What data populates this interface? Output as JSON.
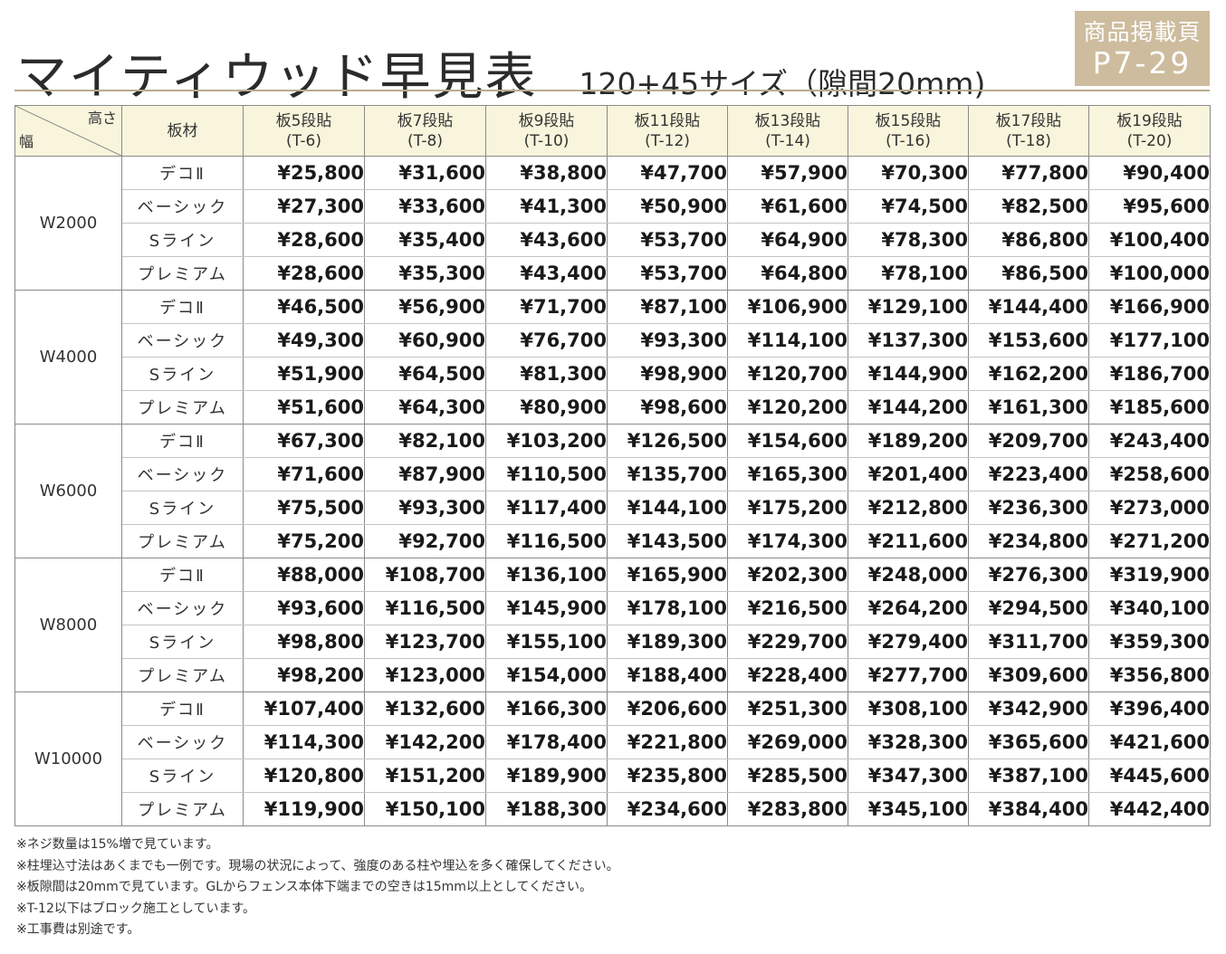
{
  "header": {
    "title": "マイティウッド早見表",
    "subtitle": "120+45サイズ（隙間20mm)",
    "badge_label": "商品掲載頁",
    "badge_page": "P7-29"
  },
  "table": {
    "corner_height_label": "高さ",
    "corner_width_label": "幅",
    "material_header": "板材",
    "columns": [
      {
        "name": "板5段貼",
        "code": "(T-6)"
      },
      {
        "name": "板7段貼",
        "code": "(T-8)"
      },
      {
        "name": "板9段貼",
        "code": "(T-10)"
      },
      {
        "name": "板11段貼",
        "code": "(T-12)"
      },
      {
        "name": "板13段貼",
        "code": "(T-14)"
      },
      {
        "name": "板15段貼",
        "code": "(T-16)"
      },
      {
        "name": "板17段貼",
        "code": "(T-18)"
      },
      {
        "name": "板19段貼",
        "code": "(T-20)"
      }
    ],
    "groups": [
      {
        "width": "W2000",
        "rows": [
          {
            "material": "デコⅡ",
            "prices": [
              "¥25,800",
              "¥31,600",
              "¥38,800",
              "¥47,700",
              "¥57,900",
              "¥70,300",
              "¥77,800",
              "¥90,400"
            ]
          },
          {
            "material": "ベーシック",
            "prices": [
              "¥27,300",
              "¥33,600",
              "¥41,300",
              "¥50,900",
              "¥61,600",
              "¥74,500",
              "¥82,500",
              "¥95,600"
            ]
          },
          {
            "material": "Sライン",
            "prices": [
              "¥28,600",
              "¥35,400",
              "¥43,600",
              "¥53,700",
              "¥64,900",
              "¥78,300",
              "¥86,800",
              "¥100,400"
            ]
          },
          {
            "material": "プレミアム",
            "prices": [
              "¥28,600",
              "¥35,300",
              "¥43,400",
              "¥53,700",
              "¥64,800",
              "¥78,100",
              "¥86,500",
              "¥100,000"
            ]
          }
        ]
      },
      {
        "width": "W4000",
        "rows": [
          {
            "material": "デコⅡ",
            "prices": [
              "¥46,500",
              "¥56,900",
              "¥71,700",
              "¥87,100",
              "¥106,900",
              "¥129,100",
              "¥144,400",
              "¥166,900"
            ]
          },
          {
            "material": "ベーシック",
            "prices": [
              "¥49,300",
              "¥60,900",
              "¥76,700",
              "¥93,300",
              "¥114,100",
              "¥137,300",
              "¥153,600",
              "¥177,100"
            ]
          },
          {
            "material": "Sライン",
            "prices": [
              "¥51,900",
              "¥64,500",
              "¥81,300",
              "¥98,900",
              "¥120,700",
              "¥144,900",
              "¥162,200",
              "¥186,700"
            ]
          },
          {
            "material": "プレミアム",
            "prices": [
              "¥51,600",
              "¥64,300",
              "¥80,900",
              "¥98,600",
              "¥120,200",
              "¥144,200",
              "¥161,300",
              "¥185,600"
            ]
          }
        ]
      },
      {
        "width": "W6000",
        "rows": [
          {
            "material": "デコⅡ",
            "prices": [
              "¥67,300",
              "¥82,100",
              "¥103,200",
              "¥126,500",
              "¥154,600",
              "¥189,200",
              "¥209,700",
              "¥243,400"
            ]
          },
          {
            "material": "ベーシック",
            "prices": [
              "¥71,600",
              "¥87,900",
              "¥110,500",
              "¥135,700",
              "¥165,300",
              "¥201,400",
              "¥223,400",
              "¥258,600"
            ]
          },
          {
            "material": "Sライン",
            "prices": [
              "¥75,500",
              "¥93,300",
              "¥117,400",
              "¥144,100",
              "¥175,200",
              "¥212,800",
              "¥236,300",
              "¥273,000"
            ]
          },
          {
            "material": "プレミアム",
            "prices": [
              "¥75,200",
              "¥92,700",
              "¥116,500",
              "¥143,500",
              "¥174,300",
              "¥211,600",
              "¥234,800",
              "¥271,200"
            ]
          }
        ]
      },
      {
        "width": "W8000",
        "rows": [
          {
            "material": "デコⅡ",
            "prices": [
              "¥88,000",
              "¥108,700",
              "¥136,100",
              "¥165,900",
              "¥202,300",
              "¥248,000",
              "¥276,300",
              "¥319,900"
            ]
          },
          {
            "material": "ベーシック",
            "prices": [
              "¥93,600",
              "¥116,500",
              "¥145,900",
              "¥178,100",
              "¥216,500",
              "¥264,200",
              "¥294,500",
              "¥340,100"
            ]
          },
          {
            "material": "Sライン",
            "prices": [
              "¥98,800",
              "¥123,700",
              "¥155,100",
              "¥189,300",
              "¥229,700",
              "¥279,400",
              "¥311,700",
              "¥359,300"
            ]
          },
          {
            "material": "プレミアム",
            "prices": [
              "¥98,200",
              "¥123,000",
              "¥154,000",
              "¥188,400",
              "¥228,400",
              "¥277,700",
              "¥309,600",
              "¥356,800"
            ]
          }
        ]
      },
      {
        "width": "W10000",
        "rows": [
          {
            "material": "デコⅡ",
            "prices": [
              "¥107,400",
              "¥132,600",
              "¥166,300",
              "¥206,600",
              "¥251,300",
              "¥308,100",
              "¥342,900",
              "¥396,400"
            ]
          },
          {
            "material": "ベーシック",
            "prices": [
              "¥114,300",
              "¥142,200",
              "¥178,400",
              "¥221,800",
              "¥269,000",
              "¥328,300",
              "¥365,600",
              "¥421,600"
            ]
          },
          {
            "material": "Sライン",
            "prices": [
              "¥120,800",
              "¥151,200",
              "¥189,900",
              "¥235,800",
              "¥285,500",
              "¥347,300",
              "¥387,100",
              "¥445,600"
            ]
          },
          {
            "material": "プレミアム",
            "prices": [
              "¥119,900",
              "¥150,100",
              "¥188,300",
              "¥234,600",
              "¥283,800",
              "¥345,100",
              "¥384,400",
              "¥442,400"
            ]
          }
        ]
      }
    ]
  },
  "notes": [
    "※ネジ数量は15%増で見ています。",
    "※柱埋込寸法はあくまでも一例です。現場の状況によって、強度のある柱や埋込を多く確保してください。",
    "※板隙間は20mmで見ています。GLからフェンス本体下端までの空きは15mm以上としてください。",
    "※T-12以下はブロック施工としています。",
    "※工事費は別途です。"
  ],
  "colors": {
    "badge_bg": "#cdbc9d",
    "header_bg": "#f8f5dc",
    "rule": "#b9ab8f"
  }
}
